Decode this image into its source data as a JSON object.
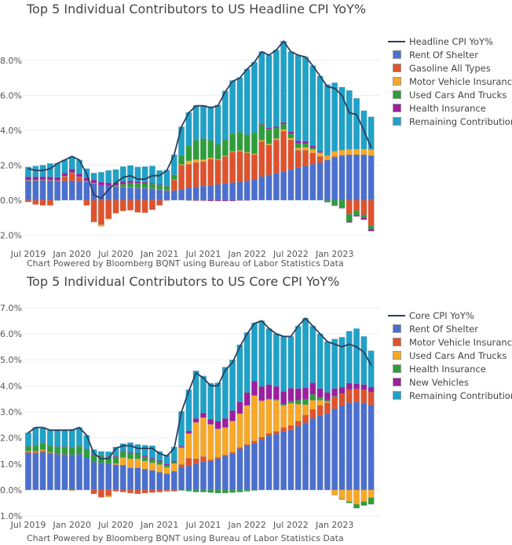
{
  "chart_data": [
    {
      "type": "bar",
      "stacked": true,
      "title": "Top 5 Individual Contributors to US Headline CPI YoY%",
      "footnote": "Chart Powered by Bloomberg BQNT using Bureau of Labor Statistics Data",
      "x_ticks": [
        "Jul 2019",
        "Jan 2020",
        "Jul 2020",
        "Jan 2021",
        "Jul 2021",
        "Jan 2022",
        "Jul 2022",
        "Jan 2023"
      ],
      "y_ticks": [
        "-2.0%",
        "0.0%",
        "2.0%",
        "4.0%",
        "6.0%",
        "8.0%"
      ],
      "y_tick_values": [
        -2,
        0,
        2,
        4,
        6,
        8
      ],
      "ylim": [
        -2.3,
        9.3
      ],
      "grid": true,
      "legend": "right",
      "x": [
        "Jul 2019",
        "Aug 2019",
        "Sep 2019",
        "Oct 2019",
        "Nov 2019",
        "Dec 2019",
        "Jan 2020",
        "Feb 2020",
        "Mar 2020",
        "Apr 2020",
        "May 2020",
        "Jun 2020",
        "Jul 2020",
        "Aug 2020",
        "Sep 2020",
        "Oct 2020",
        "Nov 2020",
        "Dec 2020",
        "Jan 2021",
        "Feb 2021",
        "Mar 2021",
        "Apr 2021",
        "May 2021",
        "Jun 2021",
        "Jul 2021",
        "Aug 2021",
        "Sep 2021",
        "Oct 2021",
        "Nov 2021",
        "Dec 2021",
        "Jan 2022",
        "Feb 2022",
        "Mar 2022",
        "Apr 2022",
        "May 2022",
        "Jun 2022",
        "Jul 2022",
        "Aug 2022",
        "Sep 2022",
        "Oct 2022",
        "Nov 2022",
        "Dec 2022",
        "Jan 2023",
        "Feb 2023",
        "Mar 2023",
        "Apr 2023",
        "May 2023",
        "Jun 2023"
      ],
      "line": {
        "name": "Headline CPI YoY%",
        "color": "#2c3e5c",
        "values": [
          1.8,
          1.7,
          1.7,
          1.8,
          2.1,
          2.3,
          2.5,
          2.3,
          1.5,
          0.3,
          0.1,
          0.6,
          1.0,
          1.3,
          1.4,
          1.2,
          1.2,
          1.4,
          1.4,
          1.7,
          2.6,
          4.2,
          5.0,
          5.4,
          5.4,
          5.3,
          5.4,
          6.2,
          6.8,
          7.0,
          7.5,
          7.9,
          8.5,
          8.3,
          8.6,
          9.1,
          8.5,
          8.3,
          8.2,
          7.7,
          7.1,
          6.5,
          6.4,
          6.0,
          5.0,
          4.9,
          4.0,
          3.0
        ]
      },
      "series": [
        {
          "name": "Rent Of Shelter",
          "color": "#4a6fcf",
          "values": [
            1.12,
            1.12,
            1.13,
            1.12,
            1.1,
            1.1,
            1.1,
            1.1,
            1.05,
            0.95,
            0.85,
            0.82,
            0.78,
            0.75,
            0.72,
            0.7,
            0.68,
            0.65,
            0.6,
            0.55,
            0.55,
            0.6,
            0.7,
            0.75,
            0.8,
            0.85,
            0.9,
            0.95,
            1.0,
            1.05,
            1.1,
            1.2,
            1.35,
            1.45,
            1.55,
            1.65,
            1.75,
            1.85,
            1.95,
            2.05,
            2.15,
            2.3,
            2.45,
            2.55,
            2.6,
            2.6,
            2.6,
            2.55
          ]
        },
        {
          "name": "Gasoline All Types",
          "color": "#e0522b",
          "values": [
            -0.1,
            -0.25,
            -0.3,
            -0.3,
            0.0,
            0.25,
            0.45,
            0.2,
            -0.3,
            -1.25,
            -1.4,
            -1.05,
            -0.75,
            -0.62,
            -0.58,
            -0.7,
            -0.72,
            -0.55,
            -0.3,
            -0.02,
            0.6,
            1.4,
            1.35,
            1.4,
            1.4,
            1.5,
            1.4,
            1.55,
            1.75,
            1.75,
            1.6,
            1.4,
            2.0,
            1.7,
            1.9,
            2.3,
            1.7,
            1.0,
            0.9,
            0.65,
            0.35,
            -0.02,
            0.05,
            0.02,
            -0.8,
            -0.6,
            -0.85,
            -1.45
          ]
        },
        {
          "name": "Motor Vehicle Insurance",
          "color": "#f9a825",
          "values": [
            0.03,
            0.03,
            0.03,
            0.03,
            0.03,
            0.03,
            0.03,
            0.03,
            0.03,
            0.03,
            -0.1,
            -0.05,
            0.02,
            0.02,
            0.02,
            0.02,
            0.02,
            0.02,
            0.02,
            0.02,
            0.03,
            0.05,
            0.2,
            0.18,
            0.12,
            0.08,
            0.05,
            0.05,
            0.05,
            0.05,
            0.05,
            0.06,
            0.08,
            0.08,
            0.08,
            0.1,
            0.1,
            0.15,
            0.18,
            0.2,
            0.22,
            0.25,
            0.3,
            0.3,
            0.32,
            0.32,
            0.33,
            0.35
          ]
        },
        {
          "name": "Used Cars And Trucks",
          "color": "#2e9e3a",
          "values": [
            0.0,
            0.0,
            0.0,
            0.0,
            -0.02,
            0.0,
            0.0,
            0.0,
            0.02,
            0.0,
            0.0,
            0.0,
            0.05,
            0.15,
            0.25,
            0.25,
            0.25,
            0.25,
            0.22,
            0.22,
            0.25,
            0.5,
            0.85,
            1.1,
            1.2,
            1.0,
            0.85,
            0.9,
            1.0,
            1.05,
            1.0,
            1.2,
            0.9,
            0.85,
            0.6,
            0.3,
            0.25,
            0.25,
            0.2,
            0.1,
            0.0,
            -0.1,
            -0.3,
            -0.45,
            -0.4,
            -0.25,
            -0.15,
            -0.2
          ]
        },
        {
          "name": "Health Insurance",
          "color": "#9c1fa0",
          "values": [
            0.18,
            0.18,
            0.18,
            0.18,
            0.18,
            0.18,
            0.2,
            0.18,
            0.18,
            0.18,
            0.18,
            0.18,
            0.15,
            0.15,
            0.12,
            0.1,
            0.08,
            0.06,
            0.05,
            0.03,
            0.02,
            0.0,
            -0.02,
            -0.03,
            -0.03,
            -0.05,
            -0.05,
            -0.05,
            -0.05,
            -0.02,
            -0.01,
            0.0,
            0.05,
            0.06,
            0.08,
            0.1,
            0.12,
            0.15,
            0.15,
            0.12,
            0.08,
            0.02,
            -0.02,
            -0.02,
            -0.08,
            -0.08,
            -0.12,
            -0.12
          ]
        },
        {
          "name": "Remaining Contribution",
          "color": "#1ea2c8",
          "values": [
            0.57,
            0.62,
            0.66,
            0.77,
            0.81,
            0.74,
            0.72,
            0.79,
            0.52,
            0.39,
            0.57,
            0.7,
            0.75,
            0.85,
            0.87,
            0.83,
            0.89,
            0.97,
            0.81,
            0.9,
            1.15,
            1.65,
            1.92,
            2.0,
            1.91,
            1.92,
            2.25,
            2.8,
            3.05,
            3.12,
            3.76,
            4.04,
            4.12,
            4.16,
            4.39,
            4.65,
            4.58,
            4.9,
            4.82,
            4.58,
            4.3,
            4.05,
            3.92,
            3.6,
            3.36,
            2.91,
            2.19,
            1.87
          ]
        }
      ]
    },
    {
      "type": "bar",
      "stacked": true,
      "title": "Top 5 Individual Contributors to US Core CPI YoY%",
      "footnote": "Chart Powered by Bloomberg BQNT using Bureau of Labor Statistics Data",
      "x_ticks": [
        "Jul 2019",
        "Jan 2020",
        "Jul 2020",
        "Jan 2021",
        "Jul 2021",
        "Jan 2022",
        "Jul 2022",
        "Jan 2023"
      ],
      "y_ticks": [
        "-1.0%",
        "0.0%",
        "1.0%",
        "2.0%",
        "3.0%",
        "4.0%",
        "5.0%",
        "6.0%",
        "7.0%"
      ],
      "y_tick_values": [
        -1,
        0,
        1,
        2,
        3,
        4,
        5,
        6,
        7
      ],
      "ylim": [
        -1.15,
        7.3
      ],
      "grid": true,
      "legend": "right",
      "x": [
        "Jul 2019",
        "Aug 2019",
        "Sep 2019",
        "Oct 2019",
        "Nov 2019",
        "Dec 2019",
        "Jan 2020",
        "Feb 2020",
        "Mar 2020",
        "Apr 2020",
        "May 2020",
        "Jun 2020",
        "Jul 2020",
        "Aug 2020",
        "Sep 2020",
        "Oct 2020",
        "Nov 2020",
        "Dec 2020",
        "Jan 2021",
        "Feb 2021",
        "Mar 2021",
        "Apr 2021",
        "May 2021",
        "Jun 2021",
        "Jul 2021",
        "Aug 2021",
        "Sep 2021",
        "Oct 2021",
        "Nov 2021",
        "Dec 2021",
        "Jan 2022",
        "Feb 2022",
        "Mar 2022",
        "Apr 2022",
        "May 2022",
        "Jun 2022",
        "Jul 2022",
        "Aug 2022",
        "Sep 2022",
        "Oct 2022",
        "Nov 2022",
        "Dec 2022",
        "Jan 2023",
        "Feb 2023",
        "Mar 2023",
        "Apr 2023",
        "May 2023",
        "Jun 2023"
      ],
      "line": {
        "name": "Core CPI YoY%",
        "color": "#2c3e5c",
        "values": [
          2.2,
          2.4,
          2.4,
          2.3,
          2.3,
          2.3,
          2.3,
          2.4,
          2.1,
          1.4,
          1.2,
          1.2,
          1.6,
          1.7,
          1.7,
          1.6,
          1.6,
          1.6,
          1.4,
          1.3,
          1.6,
          3.0,
          3.8,
          4.5,
          4.3,
          4.0,
          4.0,
          4.6,
          4.9,
          5.5,
          6.0,
          6.4,
          6.5,
          6.2,
          6.0,
          5.9,
          5.9,
          6.3,
          6.6,
          6.3,
          6.0,
          5.7,
          5.6,
          5.5,
          5.6,
          5.5,
          5.3,
          4.8
        ]
      },
      "series": [
        {
          "name": "Rent Of Shelter",
          "color": "#4a6fcf",
          "values": [
            1.42,
            1.4,
            1.45,
            1.4,
            1.38,
            1.35,
            1.35,
            1.38,
            1.25,
            1.08,
            1.05,
            1.0,
            0.97,
            0.95,
            0.85,
            0.85,
            0.8,
            0.75,
            0.68,
            0.62,
            0.72,
            0.88,
            0.92,
            1.0,
            1.08,
            1.12,
            1.2,
            1.3,
            1.4,
            1.58,
            1.7,
            1.8,
            1.95,
            2.08,
            2.15,
            2.25,
            2.3,
            2.45,
            2.58,
            2.75,
            2.85,
            2.95,
            3.12,
            3.25,
            3.36,
            3.38,
            3.35,
            3.26
          ]
        },
        {
          "name": "Motor Vehicle Insurance",
          "color": "#e0522b",
          "values": [
            0.05,
            0.05,
            0.05,
            0.03,
            0.02,
            0.02,
            0.0,
            0.0,
            0.0,
            -0.15,
            -0.28,
            -0.22,
            -0.05,
            -0.08,
            -0.12,
            -0.15,
            -0.12,
            -0.1,
            -0.08,
            -0.05,
            -0.05,
            0.1,
            0.3,
            0.2,
            0.2,
            0.05,
            0.05,
            0.05,
            0.05,
            0.05,
            0.05,
            0.08,
            0.08,
            0.1,
            0.1,
            0.15,
            0.18,
            0.2,
            0.3,
            0.35,
            0.4,
            0.4,
            0.45,
            0.45,
            0.5,
            0.5,
            0.5,
            0.5
          ]
        },
        {
          "name": "Used Cars And Trucks",
          "color": "#f9a825",
          "values": [
            0.03,
            0.03,
            0.05,
            0.02,
            0.0,
            0.0,
            -0.03,
            0.0,
            0.0,
            0.0,
            0.0,
            -0.05,
            0.05,
            0.3,
            0.35,
            0.35,
            0.32,
            0.3,
            0.3,
            0.25,
            0.3,
            0.65,
            0.95,
            1.4,
            1.5,
            1.35,
            1.1,
            1.05,
            1.2,
            1.3,
            1.5,
            1.75,
            1.4,
            1.3,
            1.2,
            0.85,
            0.85,
            0.65,
            0.4,
            0.35,
            0.2,
            0.05,
            -0.2,
            -0.35,
            -0.45,
            -0.55,
            -0.45,
            -0.3
          ]
        },
        {
          "name": "Health Insurance",
          "color": "#2e9e3a",
          "values": [
            0.18,
            0.22,
            0.25,
            0.25,
            0.25,
            0.28,
            0.28,
            0.3,
            0.3,
            0.25,
            0.25,
            0.25,
            0.25,
            0.22,
            0.2,
            0.18,
            0.15,
            0.12,
            0.1,
            0.08,
            0.05,
            -0.02,
            -0.05,
            -0.08,
            -0.08,
            -0.1,
            -0.12,
            -0.12,
            -0.1,
            -0.08,
            -0.05,
            -0.02,
            0.0,
            0.02,
            0.03,
            0.04,
            0.08,
            0.15,
            0.2,
            0.22,
            0.1,
            0.05,
            0.03,
            -0.02,
            -0.05,
            -0.15,
            -0.15,
            -0.25
          ]
        },
        {
          "name": "New Vehicles",
          "color": "#9c1fa0",
          "values": [
            0.02,
            0.02,
            0.02,
            0.02,
            0.02,
            0.02,
            0.02,
            0.02,
            0.03,
            0.03,
            0.03,
            0.03,
            0.03,
            0.03,
            0.04,
            0.04,
            0.05,
            0.05,
            0.05,
            0.05,
            0.05,
            0.05,
            0.1,
            0.15,
            0.18,
            0.2,
            0.3,
            0.35,
            0.4,
            0.45,
            0.5,
            0.55,
            0.55,
            0.55,
            0.5,
            0.5,
            0.5,
            0.45,
            0.45,
            0.45,
            0.35,
            0.3,
            0.3,
            0.25,
            0.25,
            0.2,
            0.2,
            0.2
          ]
        },
        {
          "name": "Remaining Contribution",
          "color": "#1ea2c8",
          "values": [
            0.5,
            0.68,
            0.58,
            0.58,
            0.63,
            0.63,
            0.68,
            0.7,
            0.52,
            0.19,
            0.15,
            0.19,
            0.35,
            0.28,
            0.38,
            0.33,
            0.4,
            0.48,
            0.35,
            0.35,
            0.53,
            1.34,
            1.58,
            1.83,
            1.42,
            1.38,
            1.47,
            1.97,
            1.95,
            2.2,
            2.3,
            2.24,
            2.52,
            2.15,
            2.02,
            2.11,
            1.99,
            2.4,
            2.67,
            2.18,
            2.1,
            1.95,
            1.9,
            1.92,
            1.99,
            2.12,
            1.85,
            1.39
          ]
        }
      ]
    }
  ]
}
